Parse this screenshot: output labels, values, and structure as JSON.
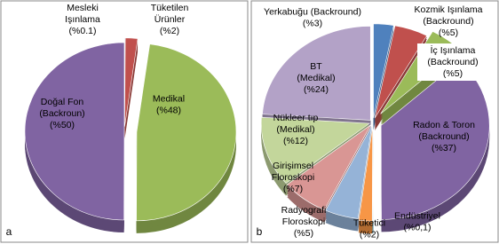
{
  "chart_data": [
    {
      "type": "pie",
      "panel_label": "a",
      "categories": [
        [
          "Mesleki",
          "Işınlama"
        ],
        [
          "Tüketilen",
          "Ürünler"
        ],
        [
          "Medikal"
        ],
        [
          "Doğal Fon",
          "(Backroun)"
        ]
      ],
      "values": [
        0.1,
        2,
        48,
        50
      ],
      "value_labels": [
        "(%0.1)",
        "(%2)",
        "(%48)",
        "(%50)"
      ],
      "colors": [
        "#4f81bd",
        "#c0504d",
        "#9bbb59",
        "#8064a2"
      ]
    },
    {
      "type": "pie",
      "panel_label": "b",
      "categories": [
        [
          "Yerkabuğu (Backround)"
        ],
        [
          "Kozmik Işınlama",
          "(Backround)"
        ],
        [
          "İç Işınlama",
          "(Backround)"
        ],
        [
          "Radon & Toron",
          "(Backround)"
        ],
        [
          "Endüstriyel"
        ],
        [
          "Tüketici"
        ],
        [
          "Radyografi",
          "Floroskopi"
        ],
        [
          "Girişimsel",
          "Floroskopi"
        ],
        [
          "Nükleer tıp",
          "(Medikal)"
        ],
        [
          "BT",
          "(Medikal)"
        ]
      ],
      "values": [
        3,
        5,
        5,
        37,
        0.1,
        2,
        5,
        7,
        12,
        24
      ],
      "value_labels": [
        "(%3)",
        "(%5)",
        "(%5)",
        "(%37)",
        "(%0,1)",
        "(%2)",
        "(%5)",
        "(%7)",
        "(%12)",
        "(%24)"
      ],
      "colors": [
        "#4f81bd",
        "#c0504d",
        "#9bbb59",
        "#8064a2",
        "#4bacc6",
        "#f79646",
        "#95b3d7",
        "#d99694",
        "#c3d69b",
        "#b3a2c7"
      ]
    }
  ]
}
